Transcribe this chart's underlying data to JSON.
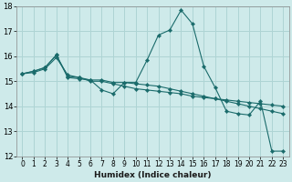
{
  "xlabel": "Humidex (Indice chaleur)",
  "bg_color": "#ceeaea",
  "grid_color": "#aed4d4",
  "line_color": "#1a6b6b",
  "xlim": [
    -0.5,
    23.5
  ],
  "ylim": [
    12,
    18
  ],
  "yticks": [
    12,
    13,
    14,
    15,
    16,
    17,
    18
  ],
  "xticks": [
    0,
    1,
    2,
    3,
    4,
    5,
    6,
    7,
    8,
    9,
    10,
    11,
    12,
    13,
    14,
    15,
    16,
    17,
    18,
    19,
    20,
    21,
    22,
    23
  ],
  "line1_x": [
    0,
    1,
    2,
    3,
    4,
    5,
    6,
    7,
    8,
    9,
    10,
    11,
    12,
    13,
    14,
    15,
    16,
    17,
    18,
    19,
    20,
    21,
    22,
    23
  ],
  "line1_y": [
    15.3,
    15.4,
    15.55,
    16.05,
    15.15,
    15.1,
    15.05,
    14.65,
    14.5,
    14.95,
    14.95,
    15.85,
    16.85,
    17.05,
    17.85,
    17.3,
    15.6,
    14.75,
    13.8,
    13.7,
    13.65,
    14.2,
    12.2,
    12.2
  ],
  "line2_x": [
    0,
    1,
    2,
    3,
    4,
    5,
    6,
    7,
    8,
    9,
    10,
    11,
    12,
    13,
    14,
    15,
    16,
    17,
    18,
    19,
    20,
    21,
    22,
    23
  ],
  "line2_y": [
    15.3,
    15.4,
    15.55,
    16.05,
    15.2,
    15.15,
    15.05,
    15.05,
    14.95,
    14.95,
    14.9,
    14.85,
    14.8,
    14.7,
    14.6,
    14.5,
    14.4,
    14.3,
    14.2,
    14.1,
    14.0,
    13.9,
    13.8,
    13.7
  ],
  "line3_x": [
    0,
    1,
    2,
    3,
    4,
    5,
    6,
    7,
    8,
    9,
    10,
    11,
    12,
    13,
    14,
    15,
    16,
    17,
    18,
    19,
    20,
    21,
    22,
    23
  ],
  "line3_y": [
    15.3,
    15.35,
    15.5,
    15.95,
    15.25,
    15.15,
    15.0,
    15.0,
    14.9,
    14.8,
    14.7,
    14.65,
    14.6,
    14.55,
    14.5,
    14.4,
    14.35,
    14.3,
    14.25,
    14.2,
    14.15,
    14.1,
    14.05,
    14.0
  ]
}
